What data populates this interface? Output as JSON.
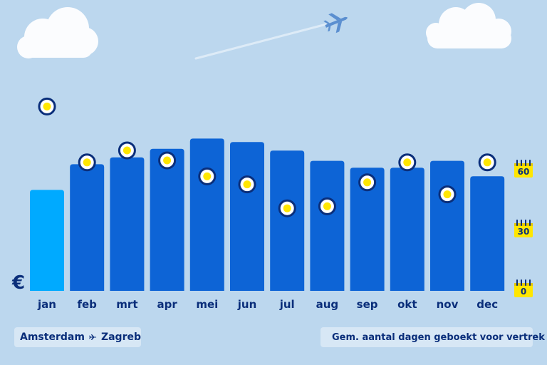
{
  "route": {
    "origin": "Amsterdam",
    "destination": "Zagreb"
  },
  "legend": {
    "days_label": "Gem. aantal dagen geboekt voor vertrek"
  },
  "currency_symbol": "€",
  "colors": {
    "background": "#bcd7ee",
    "bar": "#0d64d6",
    "bar_highlight": "#00aaff",
    "marker_ring": "#0a2e7a",
    "marker_fill": "#ffe600",
    "calendar": "#ffe600"
  },
  "chart_data": {
    "type": "bar",
    "categories": [
      "jan",
      "feb",
      "mrt",
      "apr",
      "mei",
      "jun",
      "jul",
      "aug",
      "sep",
      "okt",
      "nov",
      "dec"
    ],
    "series": [
      {
        "values": [
          59,
          74,
          78,
          83,
          89,
          87,
          82,
          76,
          72,
          72,
          76,
          67
        ]
      }
    ],
    "highlight_index": 0,
    "markers": {
      "values": [
        92,
        64,
        70,
        65,
        57,
        53,
        41,
        42,
        54,
        64,
        48,
        64
      ]
    },
    "y_right": {
      "ticks": [
        0,
        30,
        60
      ],
      "range": [
        0,
        60
      ]
    }
  }
}
